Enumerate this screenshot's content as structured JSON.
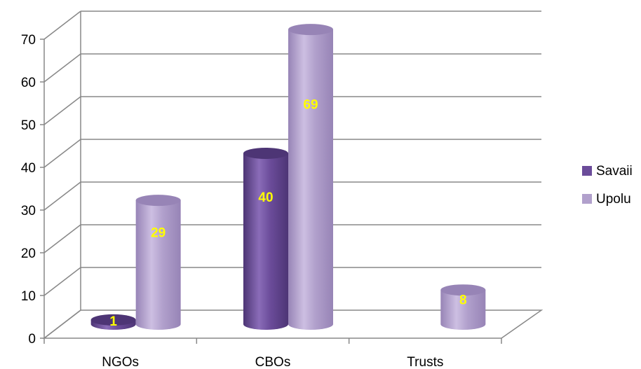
{
  "chart_data": {
    "type": "bar",
    "categories": [
      "NGOs",
      "CBOs",
      "Trusts"
    ],
    "series": [
      {
        "name": "Savaii",
        "values": [
          1,
          40,
          null
        ],
        "color": "#6b4c9a",
        "light": "#8a6cb8",
        "dark": "#4d3575"
      },
      {
        "name": "Upolu",
        "values": [
          29,
          69,
          8
        ],
        "color": "#b1a0cc",
        "light": "#cdbfe2",
        "dark": "#9784b6"
      }
    ],
    "data_labels": [
      [
        "1",
        "40",
        ""
      ],
      [
        "29",
        "69",
        "8"
      ]
    ],
    "ylim": [
      0,
      70
    ],
    "yticks": [
      0,
      10,
      20,
      30,
      40,
      50,
      60,
      70
    ],
    "grid": true,
    "legend_position": "right",
    "label_color": "#ffff00",
    "gridline_color": "#888888"
  }
}
